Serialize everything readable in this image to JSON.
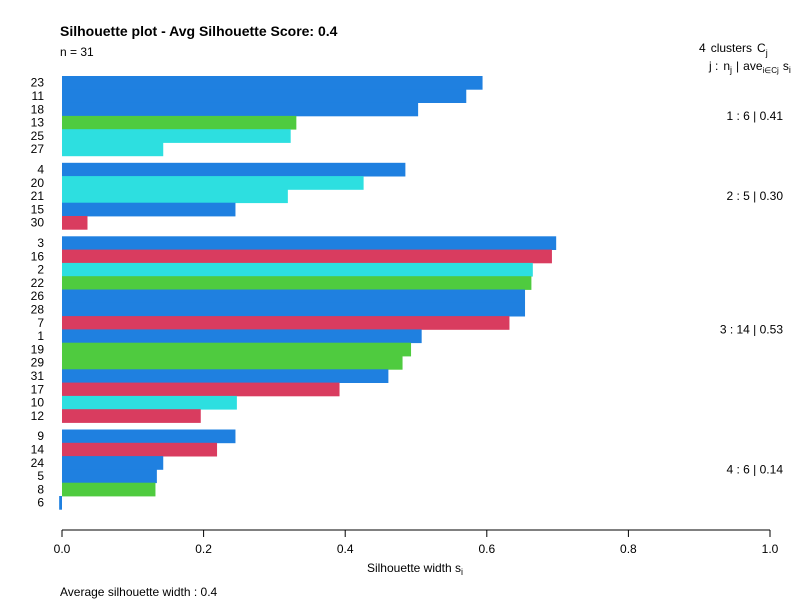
{
  "chart_data": {
    "type": "bar",
    "orientation": "horizontal",
    "title": "Silhouette plot - Avg Silhouette Score: 0.4",
    "n_label": "n = 31",
    "legend_header": {
      "count": "4",
      "text": "clusters",
      "symbol": "C",
      "symbol_sub": "j"
    },
    "legend_subheader": {
      "j": "j :",
      "n": "n",
      "n_sub": "j",
      "sep": "|",
      "ave": "ave",
      "ave_sub": "i∈Cj",
      "s": "s",
      "s_sub": "i"
    },
    "xlabel": "Silhouette width s",
    "xlabel_sub": "i",
    "xlim": [
      0,
      1
    ],
    "xticks": [
      "0.0",
      "0.2",
      "0.4",
      "0.6",
      "0.8",
      "1.0"
    ],
    "footer": "Average silhouette width :  0.4",
    "colors": {
      "blue": "#1f80e0",
      "green": "#4fcb3f",
      "cyan": "#2ddfe0",
      "red": "#d93c5f"
    },
    "clusters": [
      {
        "summary": "1 :   6  |  0.41",
        "bars": [
          {
            "label": "23",
            "value": 0.594,
            "color": "blue"
          },
          {
            "label": "11",
            "value": 0.571,
            "color": "blue"
          },
          {
            "label": "18",
            "value": 0.503,
            "color": "blue"
          },
          {
            "label": "13",
            "value": 0.331,
            "color": "green"
          },
          {
            "label": "25",
            "value": 0.323,
            "color": "cyan"
          },
          {
            "label": "27",
            "value": 0.143,
            "color": "cyan"
          }
        ]
      },
      {
        "summary": "2 :   5  |  0.30",
        "bars": [
          {
            "label": "4",
            "value": 0.485,
            "color": "blue"
          },
          {
            "label": "20",
            "value": 0.426,
            "color": "cyan"
          },
          {
            "label": "21",
            "value": 0.319,
            "color": "cyan"
          },
          {
            "label": "15",
            "value": 0.245,
            "color": "blue"
          },
          {
            "label": "30",
            "value": 0.036,
            "color": "red"
          }
        ]
      },
      {
        "summary": "3 :   14  |  0.53",
        "bars": [
          {
            "label": "3",
            "value": 0.698,
            "color": "blue"
          },
          {
            "label": "16",
            "value": 0.692,
            "color": "red"
          },
          {
            "label": "2",
            "value": 0.665,
            "color": "cyan"
          },
          {
            "label": "22",
            "value": 0.663,
            "color": "green"
          },
          {
            "label": "26",
            "value": 0.654,
            "color": "blue"
          },
          {
            "label": "28",
            "value": 0.654,
            "color": "blue"
          },
          {
            "label": "7",
            "value": 0.632,
            "color": "red"
          },
          {
            "label": "1",
            "value": 0.508,
            "color": "blue"
          },
          {
            "label": "19",
            "value": 0.493,
            "color": "green"
          },
          {
            "label": "29",
            "value": 0.481,
            "color": "green"
          },
          {
            "label": "31",
            "value": 0.461,
            "color": "blue"
          },
          {
            "label": "17",
            "value": 0.392,
            "color": "red"
          },
          {
            "label": "10",
            "value": 0.247,
            "color": "cyan"
          },
          {
            "label": "12",
            "value": 0.196,
            "color": "red"
          }
        ]
      },
      {
        "summary": "4 :   6  |  0.14",
        "bars": [
          {
            "label": "9",
            "value": 0.245,
            "color": "blue"
          },
          {
            "label": "14",
            "value": 0.219,
            "color": "red"
          },
          {
            "label": "24",
            "value": 0.143,
            "color": "blue"
          },
          {
            "label": "5",
            "value": 0.134,
            "color": "blue"
          },
          {
            "label": "8",
            "value": 0.132,
            "color": "green"
          },
          {
            "label": "6",
            "value": -0.004,
            "color": "blue"
          }
        ]
      }
    ]
  }
}
